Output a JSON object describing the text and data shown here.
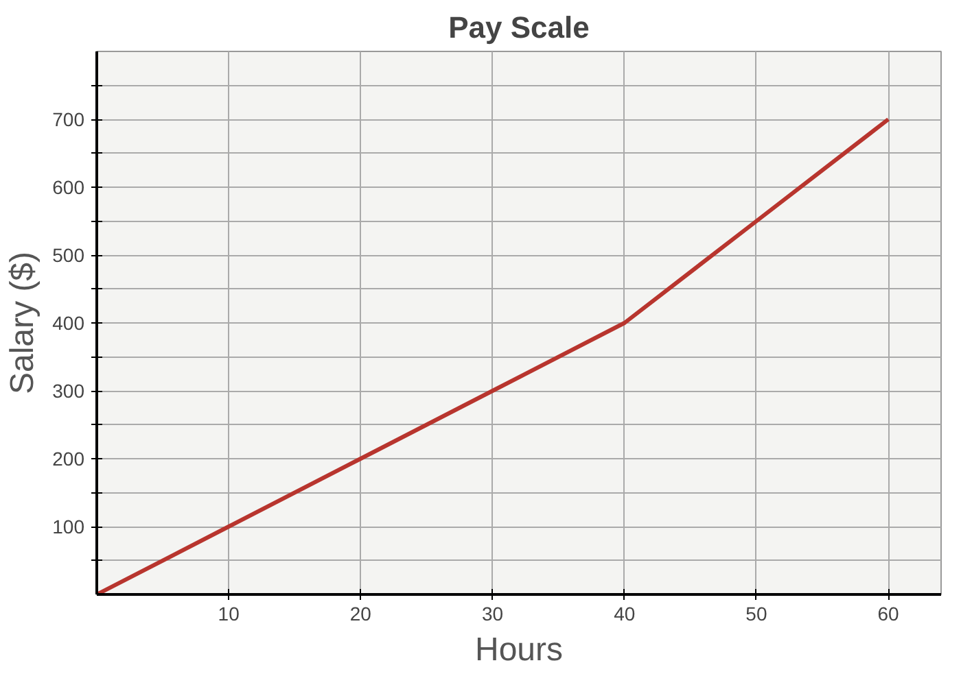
{
  "chart_data": {
    "type": "line",
    "title": "Pay Scale",
    "xlabel": "Hours",
    "ylabel": "Salary ($)",
    "x": [
      0,
      10,
      20,
      30,
      40,
      50,
      60
    ],
    "series": [
      {
        "color": "#b8352e",
        "values": [
          0,
          100,
          200,
          300,
          400,
          550,
          700
        ]
      }
    ],
    "xlim": [
      0,
      64
    ],
    "ylim": [
      0,
      800
    ],
    "xticks": [
      10,
      20,
      30,
      40,
      50,
      60
    ],
    "yticks": [
      {
        "value": 50,
        "label": null
      },
      100,
      {
        "value": 150,
        "label": null
      },
      200,
      {
        "value": 250,
        "label": null
      },
      300,
      {
        "value": 350,
        "label": null
      },
      400,
      {
        "value": 450,
        "label": null
      },
      500,
      {
        "value": 550,
        "label": null
      },
      600,
      {
        "value": 650,
        "label": null
      },
      700,
      {
        "value": 750,
        "label": null
      }
    ],
    "grid": true,
    "marker": "none",
    "line_style": "solid"
  }
}
